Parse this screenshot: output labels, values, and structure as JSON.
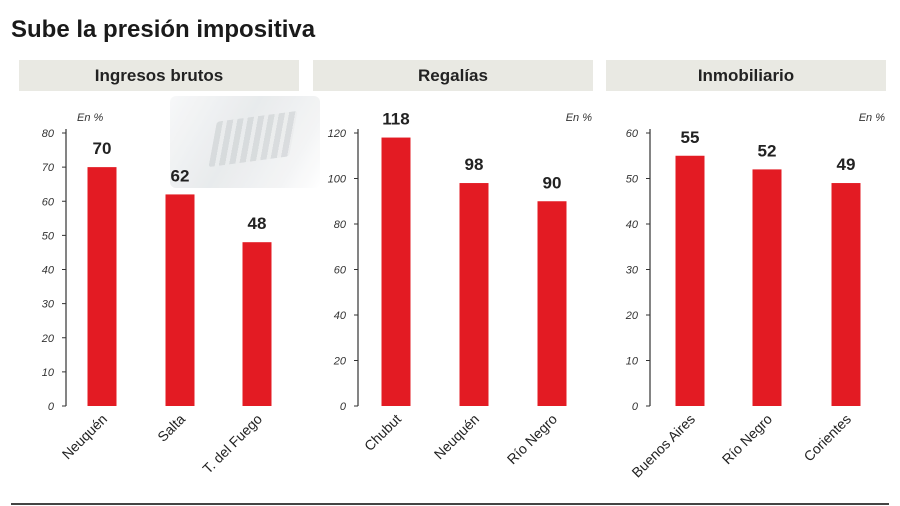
{
  "title": "Sube la presión impositiva",
  "chart_data": [
    {
      "type": "bar",
      "title": "Ingresos brutos",
      "unit": "En %",
      "categories": [
        "Neuquén",
        "Salta",
        "T. del Fuego"
      ],
      "values": [
        70,
        62,
        48
      ],
      "ylim": [
        0,
        80
      ],
      "yticks": [
        0,
        10,
        20,
        30,
        40,
        50,
        60,
        70,
        80
      ],
      "color": "#e31b23",
      "grid": false
    },
    {
      "type": "bar",
      "title": "Regalías",
      "unit": "En %",
      "categories": [
        "Chubut",
        "Neuquén",
        "Río Negro"
      ],
      "values": [
        118,
        98,
        90
      ],
      "ylim": [
        0,
        120
      ],
      "yticks": [
        0,
        20,
        40,
        60,
        80,
        100,
        120
      ],
      "color": "#e31b23",
      "grid": false
    },
    {
      "type": "bar",
      "title": "Inmobiliario",
      "unit": "En %",
      "categories": [
        "Buenos Aires",
        "Río Negro",
        "Corientes"
      ],
      "values": [
        55,
        52,
        49
      ],
      "ylim": [
        0,
        60
      ],
      "yticks": [
        0,
        10,
        20,
        30,
        40,
        50,
        60
      ],
      "color": "#e31b23",
      "grid": false
    }
  ]
}
